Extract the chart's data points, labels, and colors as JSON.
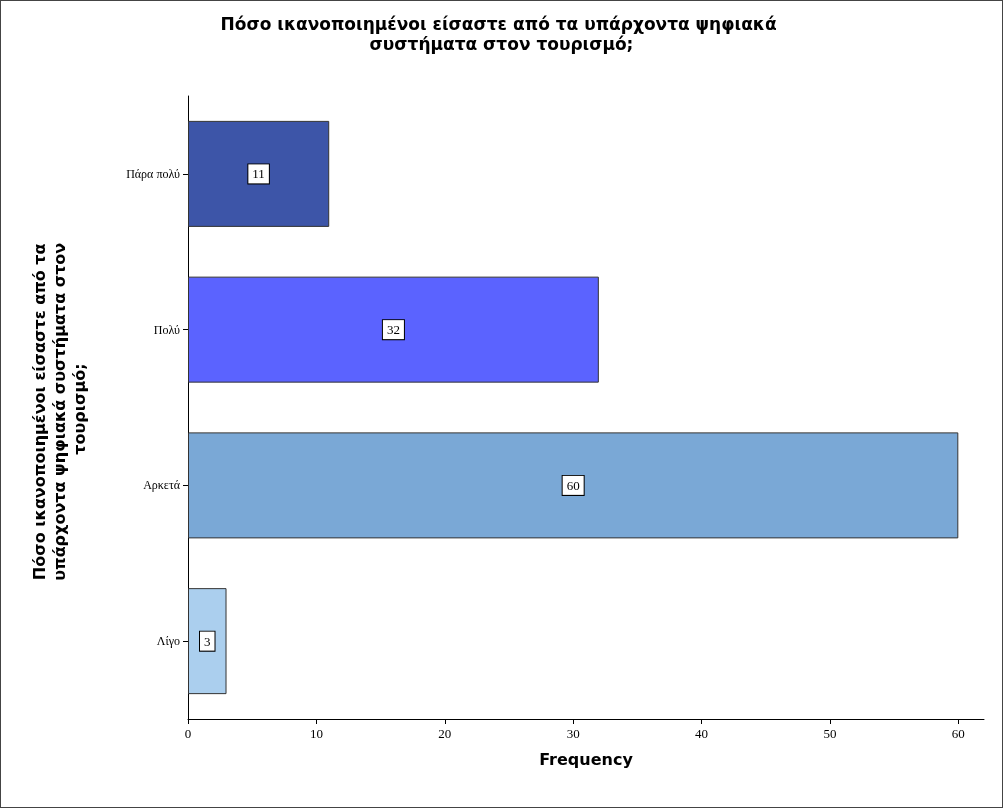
{
  "chart_data": {
    "type": "bar",
    "orientation": "horizontal",
    "title": "Πόσο ικανοποιημένοι είσαστε από τα υπάρχοντα ψηφιακά συστήματα στον τουρισμό;",
    "xlabel": "Frequency",
    "ylabel": "Πόσο ικανοποιημένοι είσαστε από τα υπάρχοντα ψηφιακά συστήματα στον τουρισμό;",
    "categories": [
      "Πάρα πολύ",
      "Πολύ",
      "Αρκετά",
      "Λίγο"
    ],
    "values": [
      11,
      32,
      60,
      3
    ],
    "colors": [
      "#3d55a8",
      "#5b63ff",
      "#7aa8d6",
      "#abcfee"
    ],
    "xlim": [
      0,
      62
    ],
    "xticks": [
      0,
      10,
      20,
      30,
      40,
      50,
      60
    ],
    "data_labels": true,
    "grid": false
  }
}
